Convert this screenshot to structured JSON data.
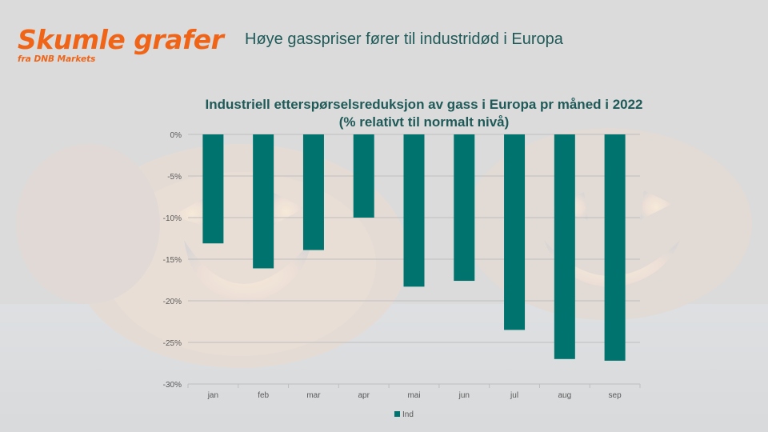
{
  "brand": {
    "title": "Skumle grafer",
    "subtitle": "fra DNB Markets"
  },
  "headline": "Høye gasspriser fører til industridød i Europa",
  "colors": {
    "brand": "#f06418",
    "bar": "#00736e",
    "title": "#1f5a58"
  },
  "chart_data": {
    "type": "bar",
    "title": "Industriell etterspørselsreduksjon av gass i Europa pr måned i 2022",
    "subtitle": "(% relativt til normalt nivå)",
    "categories": [
      "jan",
      "feb",
      "mar",
      "apr",
      "mai",
      "jun",
      "jul",
      "aug",
      "sep"
    ],
    "series": [
      {
        "name": "Ind",
        "values": [
          -13.1,
          -16.1,
          -13.9,
          -10.0,
          -18.3,
          -17.6,
          -23.5,
          -27.0,
          -27.2
        ]
      }
    ],
    "ylim": [
      -30,
      0
    ],
    "yticks": [
      0,
      -5,
      -10,
      -15,
      -20,
      -25,
      -30
    ],
    "ytick_labels": [
      "0%",
      "-5%",
      "-10%",
      "-15%",
      "-20%",
      "-25%",
      "-30%"
    ],
    "grid": true,
    "legend": "bottom"
  }
}
